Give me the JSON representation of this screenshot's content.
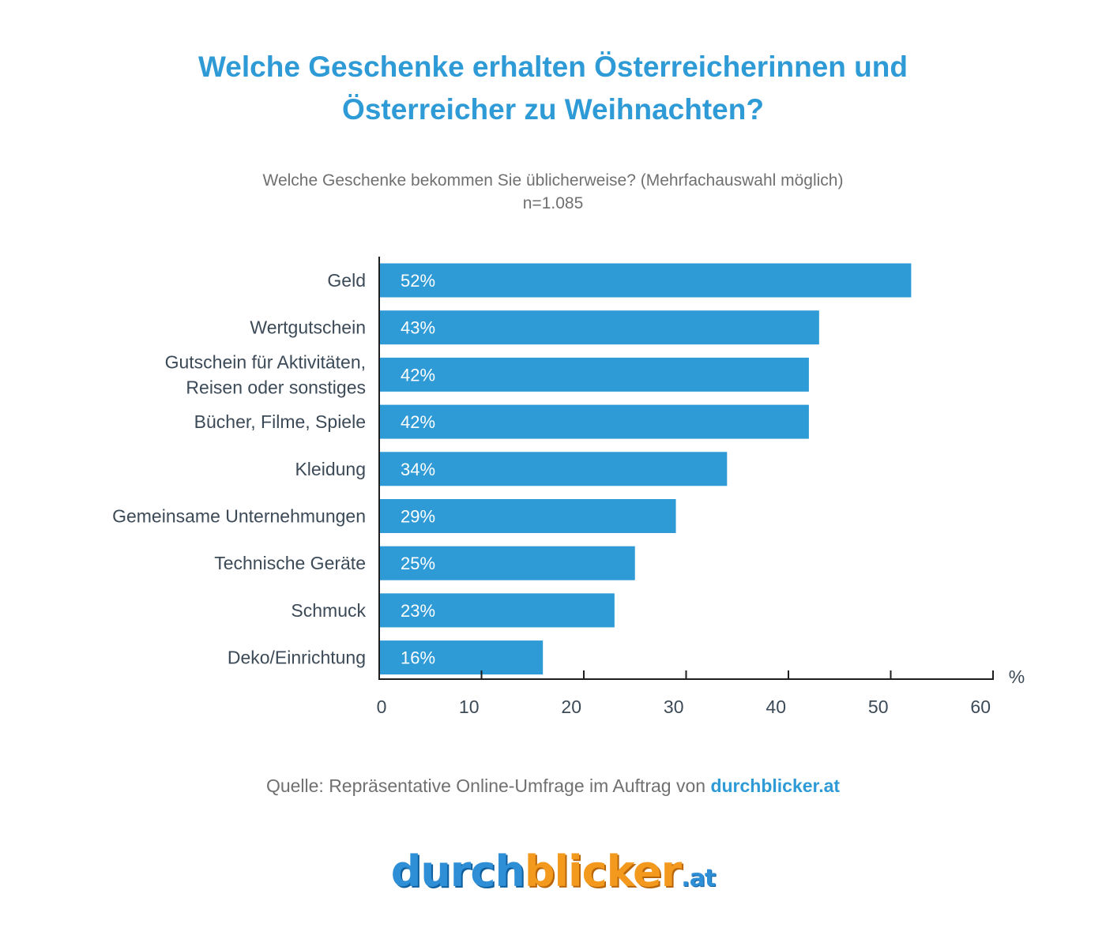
{
  "title_line1": "Welche Geschenke erhalten Österreicherinnen und",
  "title_line2": "Österreicher zu Weihnachten?",
  "subtitle_line1": "Welche Geschenke bekommen Sie üblicherweise? (Mehrfachauswahl möglich)",
  "subtitle_line2": "n=1.085",
  "source_prefix": "Quelle: Repräsentative Online-Umfrage im Auftrag von",
  "source_link": "durchblicker.at",
  "logo": {
    "part1": "durch",
    "part2": "blicker",
    "part3": ".at"
  },
  "colors": {
    "bar": "#2e9ad6",
    "title": "#2e9ad6",
    "label": "#3c4a57",
    "axis": "#1e1e1e"
  },
  "chart_data": {
    "type": "bar",
    "orientation": "horizontal",
    "categories": [
      [
        "Geld"
      ],
      [
        "Wertgutschein"
      ],
      [
        "Gutschein für Aktivitäten,",
        "Reisen oder sonstiges"
      ],
      [
        "Bücher, Filme, Spiele"
      ],
      [
        "Kleidung"
      ],
      [
        "Gemeinsame Unternehmungen"
      ],
      [
        "Technische Geräte"
      ],
      [
        "Schmuck"
      ],
      [
        "Deko/Einrichtung"
      ]
    ],
    "values": [
      52,
      43,
      42,
      42,
      34,
      29,
      25,
      23,
      16
    ],
    "data_labels": [
      "52%",
      "43%",
      "42%",
      "42%",
      "34%",
      "29%",
      "25%",
      "23%",
      "16%"
    ],
    "xlim": [
      0,
      60
    ],
    "xticks": [
      0,
      10,
      20,
      30,
      40,
      50,
      60
    ],
    "xunit": "%",
    "grid": false
  }
}
